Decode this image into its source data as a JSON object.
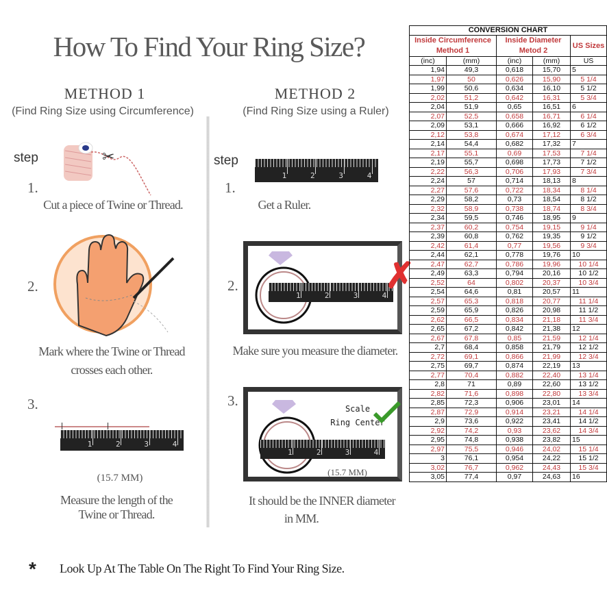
{
  "title": "How To Find Your Ring Size?",
  "method1": {
    "heading": "METHOD 1",
    "subtitle": "(Find Ring Size using Circumference)",
    "step_label": "step",
    "steps": [
      {
        "number": "1.",
        "caption": "Cut a piece of  Twine or Thread."
      },
      {
        "number": "2.",
        "caption_line1": "Mark where the Twine or Thread",
        "caption_line2": "crosses each other."
      },
      {
        "number": "3.",
        "measurement": "(15.7 MM)",
        "caption_line1": "Measure the length of the",
        "caption_line2": "Twine or Thread."
      }
    ]
  },
  "method2": {
    "heading": "METHOD 2",
    "subtitle": "(Find Ring Size using a Ruler)",
    "step_label": "step",
    "steps": [
      {
        "number": "1.",
        "caption": "Get a Ruler."
      },
      {
        "number": "2.",
        "caption": "Make sure you measure the diameter."
      },
      {
        "number": "3.",
        "scale_line1": "Scale",
        "scale_line2": "Ring Center",
        "measurement": "(15.7 MM)",
        "caption_line1": "It should be the INNER diameter",
        "caption_line2": "in MM."
      }
    ]
  },
  "ruler_labels": [
    "1",
    "2",
    "3",
    "4"
  ],
  "footer": {
    "asterisk": "*",
    "text": "Look Up At The Table On The Right To Find Your Ring Size."
  },
  "colors": {
    "accent_red": "#c0393b",
    "check_green": "#3a9a2a",
    "cross_red": "#e03030",
    "hand_orange": "#f0a060"
  },
  "conversion_chart": {
    "title": "CONVERSION CHART",
    "group1": [
      "Inside Circumference",
      "Method 1"
    ],
    "group2": [
      "Inside Diameter",
      "Metod 2"
    ],
    "group3": "US Sizes",
    "units": [
      "(inc)",
      "(mm)",
      "(inc)",
      "(mm)",
      "US"
    ],
    "rows": [
      [
        "1,94",
        "49,3",
        "0,618",
        "15,70",
        "5"
      ],
      [
        "1,97",
        "50",
        "0,626",
        "15,90",
        "5 1/4"
      ],
      [
        "1,99",
        "50,6",
        "0,634",
        "16,10",
        "5 1/2"
      ],
      [
        "2,02",
        "51,2",
        "0,642",
        "16,31",
        "5 3/4"
      ],
      [
        "2,04",
        "51,9",
        "0,65",
        "16,51",
        "6"
      ],
      [
        "2,07",
        "52,5",
        "0,658",
        "16,71",
        "6 1/4"
      ],
      [
        "2,09",
        "53,1",
        "0,666",
        "16,92",
        "6 1/2"
      ],
      [
        "2,12",
        "53,8",
        "0,674",
        "17,12",
        "6 3/4"
      ],
      [
        "2,14",
        "54,4",
        "0,682",
        "17,32",
        "7"
      ],
      [
        "2,17",
        "55,1",
        "0,69",
        "17,53",
        "7 1/4"
      ],
      [
        "2,19",
        "55,7",
        "0,698",
        "17,73",
        "7 1/2"
      ],
      [
        "2,22",
        "56,3",
        "0,706",
        "17,93",
        "7 3/4"
      ],
      [
        "2,24",
        "57",
        "0,714",
        "18,13",
        "8"
      ],
      [
        "2,27",
        "57,6",
        "0,722",
        "18,34",
        "8 1/4"
      ],
      [
        "2,29",
        "58,2",
        "0,73",
        "18,54",
        "8 1/2"
      ],
      [
        "2,32",
        "58,9",
        "0,738",
        "18,74",
        "8 3/4"
      ],
      [
        "2,34",
        "59,5",
        "0,746",
        "18,95",
        "9"
      ],
      [
        "2,37",
        "60,2",
        "0,754",
        "19,15",
        "9 1/4"
      ],
      [
        "2,39",
        "60,8",
        "0,762",
        "19,35",
        "9 1/2"
      ],
      [
        "2,42",
        "61,4",
        "0,77",
        "19,56",
        "9 3/4"
      ],
      [
        "2,44",
        "62,1",
        "0,778",
        "19,76",
        "10"
      ],
      [
        "2,47",
        "62,7",
        "0,786",
        "19,96",
        "10 1/4"
      ],
      [
        "2,49",
        "63,3",
        "0,794",
        "20,16",
        "10 1/2"
      ],
      [
        "2,52",
        "64",
        "0,802",
        "20,37",
        "10 3/4"
      ],
      [
        "2,54",
        "64,6",
        "0,81",
        "20,57",
        "11"
      ],
      [
        "2,57",
        "65,3",
        "0,818",
        "20,77",
        "11 1/4"
      ],
      [
        "2,59",
        "65,9",
        "0,826",
        "20,98",
        "11 1/2"
      ],
      [
        "2,62",
        "66,5",
        "0,834",
        "21,18",
        "11 3/4"
      ],
      [
        "2,65",
        "67,2",
        "0,842",
        "21,38",
        "12"
      ],
      [
        "2,67",
        "67,8",
        "0,85",
        "21,59",
        "12 1/4"
      ],
      [
        "2,7",
        "68,4",
        "0,858",
        "21,79",
        "12 1/2"
      ],
      [
        "2,72",
        "69,1",
        "0,866",
        "21,99",
        "12 3/4"
      ],
      [
        "2,75",
        "69,7",
        "0,874",
        "22,19",
        "13"
      ],
      [
        "2,77",
        "70,4",
        "0,882",
        "22,40",
        "13 1/4"
      ],
      [
        "2,8",
        "71",
        "0,89",
        "22,60",
        "13 1/2"
      ],
      [
        "2,82",
        "71,6",
        "0,898",
        "22,80",
        "13 3/4"
      ],
      [
        "2,85",
        "72,3",
        "0,906",
        "23,01",
        "14"
      ],
      [
        "2,87",
        "72,9",
        "0,914",
        "23,21",
        "14 1/4"
      ],
      [
        "2,9",
        "73,6",
        "0,922",
        "23,41",
        "14 1/2"
      ],
      [
        "2,92",
        "74,2",
        "0,93",
        "23,62",
        "14 3/4"
      ],
      [
        "2,95",
        "74,8",
        "0,938",
        "23,82",
        "15"
      ],
      [
        "2,97",
        "75,5",
        "0,946",
        "24,02",
        "15 1/4"
      ],
      [
        "3",
        "76,1",
        "0,954",
        "24,22",
        "15 1/2"
      ],
      [
        "3,02",
        "76,7",
        "0,962",
        "24,43",
        "15 3/4"
      ],
      [
        "3,05",
        "77,4",
        "0,97",
        "24,63",
        "16"
      ]
    ]
  }
}
